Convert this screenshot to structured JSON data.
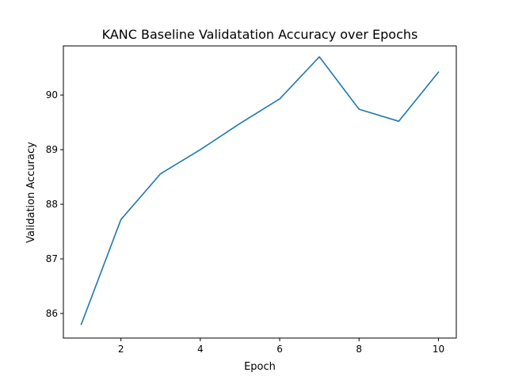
{
  "chart_data": {
    "type": "line",
    "title": "KANC Baseline Validatation Accuracy over Epochs",
    "xlabel": "Epoch",
    "ylabel": "Validation Accuracy",
    "x": [
      1,
      2,
      3,
      4,
      5,
      6,
      7,
      8,
      9,
      10
    ],
    "series": [
      {
        "values": [
          85.8,
          87.72,
          88.56,
          89.0,
          89.48,
          89.93,
          90.7,
          89.74,
          89.52,
          90.42
        ]
      }
    ],
    "xlim": [
      0.55,
      10.45
    ],
    "ylim": [
      85.55,
      90.9
    ],
    "xticks": [
      2,
      4,
      6,
      8,
      10
    ],
    "yticks": [
      86,
      87,
      88,
      89,
      90
    ],
    "grid": false,
    "legend": "none",
    "colors": {
      "line": "#1f77b4",
      "axes": "#000000",
      "background": "#ffffff"
    }
  }
}
